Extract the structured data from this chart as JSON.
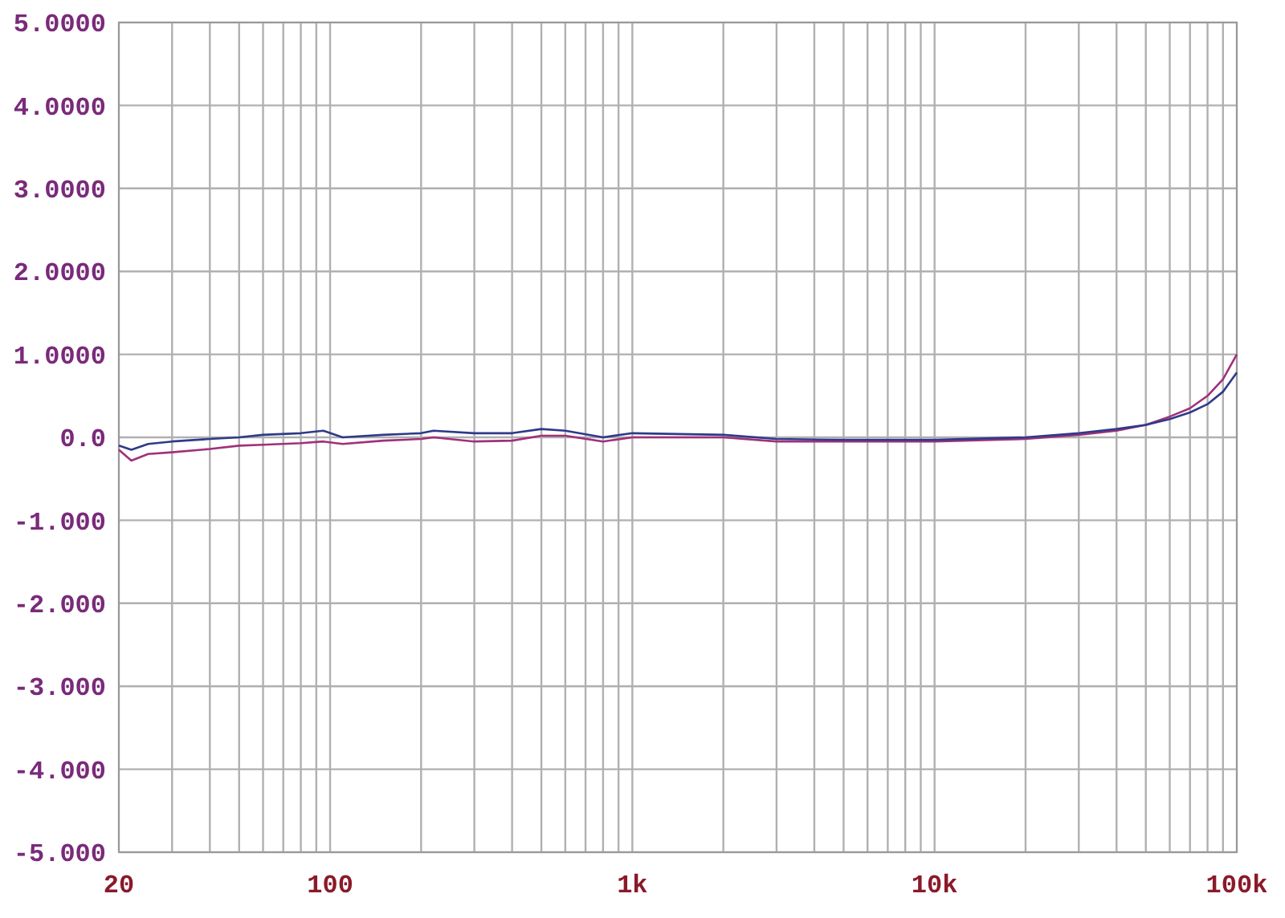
{
  "chart_data": {
    "type": "line",
    "log": "x",
    "grid": true,
    "xlim": [
      20,
      100000
    ],
    "ylim": [
      -5,
      5
    ],
    "xticks": [
      {
        "value": 20,
        "label": "20"
      },
      {
        "value": 30,
        "label": null
      },
      {
        "value": 40,
        "label": null
      },
      {
        "value": 50,
        "label": null
      },
      {
        "value": 60,
        "label": null
      },
      {
        "value": 70,
        "label": null
      },
      {
        "value": 80,
        "label": null
      },
      {
        "value": 90,
        "label": null
      },
      {
        "value": 100,
        "label": "100"
      },
      {
        "value": 200,
        "label": null
      },
      {
        "value": 300,
        "label": null
      },
      {
        "value": 400,
        "label": null
      },
      {
        "value": 500,
        "label": null
      },
      {
        "value": 600,
        "label": null
      },
      {
        "value": 700,
        "label": null
      },
      {
        "value": 800,
        "label": null
      },
      {
        "value": 900,
        "label": null
      },
      {
        "value": 1000,
        "label": "1k"
      },
      {
        "value": 2000,
        "label": null
      },
      {
        "value": 3000,
        "label": null
      },
      {
        "value": 4000,
        "label": null
      },
      {
        "value": 5000,
        "label": null
      },
      {
        "value": 6000,
        "label": null
      },
      {
        "value": 7000,
        "label": null
      },
      {
        "value": 8000,
        "label": null
      },
      {
        "value": 9000,
        "label": null
      },
      {
        "value": 10000,
        "label": "10k"
      },
      {
        "value": 20000,
        "label": null
      },
      {
        "value": 30000,
        "label": null
      },
      {
        "value": 40000,
        "label": null
      },
      {
        "value": 50000,
        "label": null
      },
      {
        "value": 60000,
        "label": null
      },
      {
        "value": 70000,
        "label": null
      },
      {
        "value": 80000,
        "label": null
      },
      {
        "value": 90000,
        "label": null
      },
      {
        "value": 100000,
        "label": "100k"
      }
    ],
    "yticks": [
      {
        "value": 5,
        "label": "5.0000"
      },
      {
        "value": 4,
        "label": "4.0000"
      },
      {
        "value": 3,
        "label": "3.0000"
      },
      {
        "value": 2,
        "label": "2.0000"
      },
      {
        "value": 1,
        "label": "1.0000"
      },
      {
        "value": 0,
        "label": "0.0"
      },
      {
        "value": -1,
        "label": "-1.000"
      },
      {
        "value": -2,
        "label": "-2.000"
      },
      {
        "value": -3,
        "label": "-3.000"
      },
      {
        "value": -4,
        "label": "-4.000"
      },
      {
        "value": -5,
        "label": "-5.000"
      }
    ],
    "x": [
      20,
      22,
      25,
      30,
      40,
      50,
      60,
      80,
      95,
      110,
      150,
      200,
      220,
      300,
      400,
      500,
      600,
      800,
      1000,
      2000,
      3000,
      5000,
      10000,
      20000,
      30000,
      40000,
      50000,
      60000,
      70000,
      80000,
      90000,
      100000
    ],
    "series": [
      {
        "color": "#a0307a",
        "values": [
          -0.15,
          -0.28,
          -0.2,
          -0.18,
          -0.14,
          -0.1,
          -0.09,
          -0.07,
          -0.05,
          -0.08,
          -0.04,
          -0.02,
          0,
          -0.05,
          -0.04,
          0.02,
          0.02,
          -0.05,
          0,
          0,
          -0.05,
          -0.05,
          -0.05,
          -0.02,
          0.03,
          0.08,
          0.15,
          0.25,
          0.35,
          0.5,
          0.7,
          1.0
        ]
      },
      {
        "color": "#2e3a8a",
        "values": [
          -0.1,
          -0.15,
          -0.08,
          -0.05,
          -0.02,
          0,
          0.03,
          0.05,
          0.08,
          0,
          0.03,
          0.05,
          0.08,
          0.05,
          0.05,
          0.1,
          0.08,
          0,
          0.05,
          0.03,
          -0.02,
          -0.03,
          -0.03,
          0,
          0.05,
          0.1,
          0.15,
          0.22,
          0.3,
          0.4,
          0.55,
          0.78
        ]
      }
    ]
  }
}
